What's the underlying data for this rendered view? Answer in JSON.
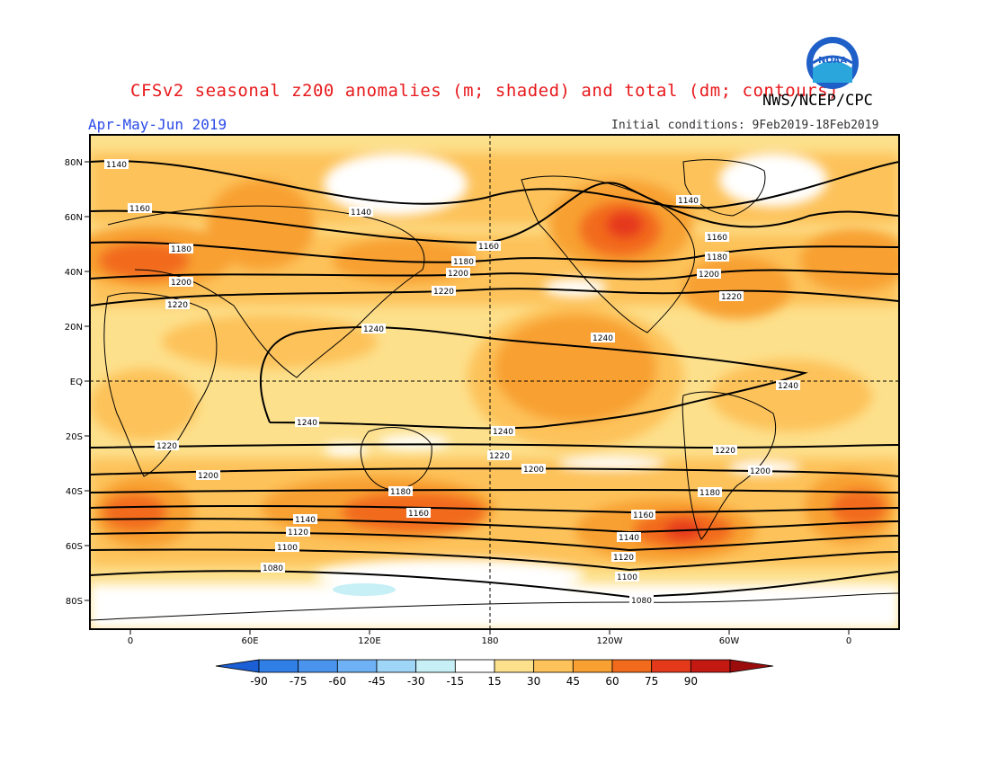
{
  "header": {
    "title": "CFSv2 seasonal z200 anomalies (m; shaded) and total (dm; contours)",
    "agency": "NWS/NCEP/CPC",
    "period": "Apr-May-Jun 2019",
    "initial_conditions": "Initial conditions: 9Feb2019-18Feb2019",
    "logo_text": "NOAA"
  },
  "map": {
    "lat_labels": [
      "80N",
      "60N",
      "40N",
      "20N",
      "EQ",
      "20S",
      "40S",
      "60S",
      "80S"
    ],
    "lon_labels": [
      "0",
      "60E",
      "120E",
      "180",
      "120W",
      "60W",
      "0"
    ]
  },
  "contours": [
    {
      "value": "1080",
      "labels": [
        "1080",
        "1080"
      ]
    },
    {
      "value": "1100",
      "labels": [
        "1100",
        "1100"
      ]
    },
    {
      "value": "1120",
      "labels": [
        "1120",
        "1120"
      ]
    },
    {
      "value": "1140",
      "labels": [
        "1140",
        "1140",
        "1140",
        "1140",
        "1140"
      ]
    },
    {
      "value": "1160",
      "labels": [
        "1160",
        "1160",
        "1160",
        "1160",
        "1160"
      ]
    },
    {
      "value": "1180",
      "labels": [
        "1180",
        "1180",
        "1180",
        "1180",
        "1180",
        "1180"
      ]
    },
    {
      "value": "1200",
      "labels": [
        "1200",
        "1200",
        "1200",
        "1200",
        "1200",
        "1200"
      ]
    },
    {
      "value": "1220",
      "labels": [
        "1220",
        "1220",
        "1220",
        "1220",
        "1220",
        "1220"
      ]
    },
    {
      "value": "1240",
      "labels": [
        "1240",
        "1240",
        "1240",
        "1240",
        "1240"
      ]
    }
  ],
  "colorbar": {
    "labels": [
      "-90",
      "-75",
      "-60",
      "-45",
      "-30",
      "-15",
      "15",
      "30",
      "45",
      "60",
      "75",
      "90"
    ],
    "colors": [
      "#1b5fd6",
      "#2f7fe6",
      "#4a94ee",
      "#6eb2f5",
      "#9fd6f8",
      "#c6f0f6",
      "#ffffff",
      "#fde08c",
      "#fdc25a",
      "#f8a032",
      "#f26b1c",
      "#e5391b",
      "#c41913",
      "#9b0d0d"
    ]
  }
}
